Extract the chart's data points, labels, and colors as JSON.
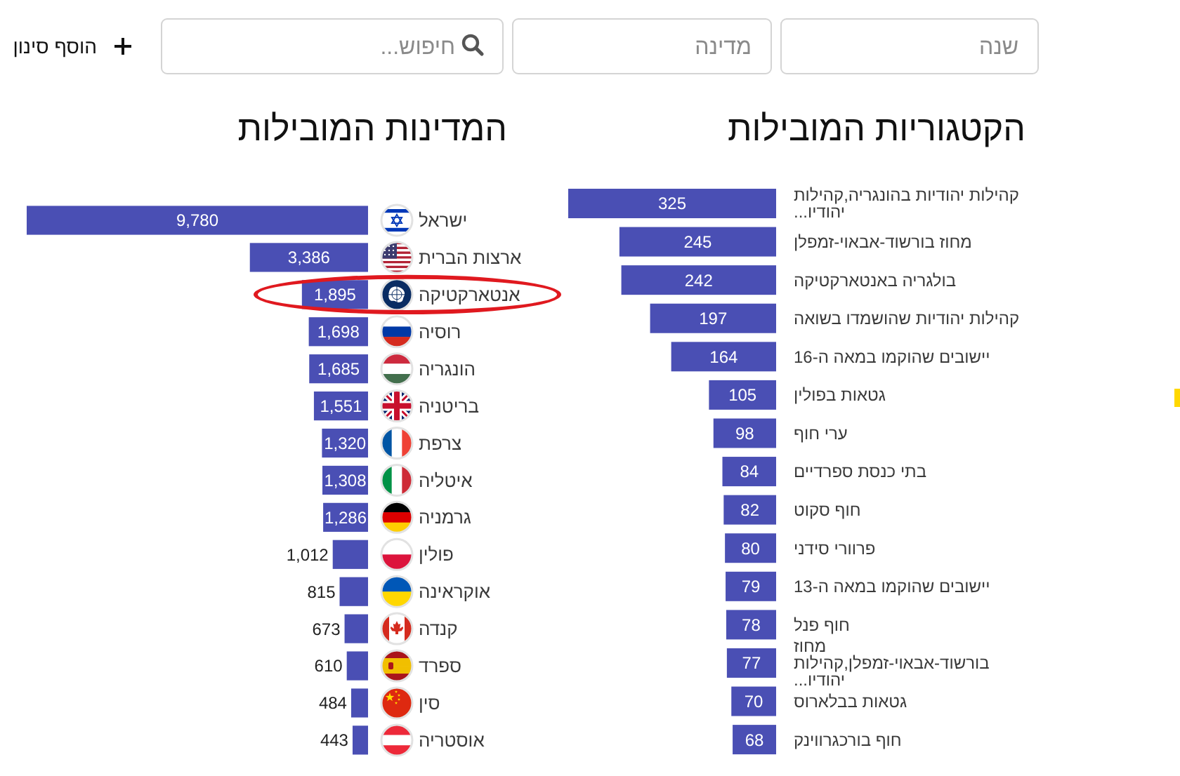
{
  "chart_data": [
    {
      "type": "other",
      "annotations": [
        "שנה",
        "מדינה",
        "חיפוש...",
        "הוסף סינון"
      ]
    },
    {
      "type": "bar",
      "orientation": "horizontal",
      "title": "הקטגוריות המובילות",
      "categories": [
        "קהילות יהודיות בהונגריה,קהילות יהודיו...",
        "מחוז בורשוד-אבאוי-זמפלן",
        "בולגריה באנטארקטיקה",
        "קהילות יהודיות שהושמדו בשואה",
        "יישובים שהוקמו במאה ה-16",
        "גטאות בפולין",
        "ערי חוף",
        "בתי כנסת ספרדיים",
        "חוף סקוט",
        "פרוורי סידני",
        "יישובים שהוקמו במאה ה-13",
        "חוף פנל",
        "מחוז בורשוד-אבאוי-זמפלן,קהילות יהודיו...",
        "גטאות בבלארוס",
        "חוף בורכגרווינק"
      ],
      "values": [
        325,
        245,
        242,
        197,
        164,
        105,
        98,
        84,
        82,
        80,
        79,
        78,
        77,
        70,
        68
      ],
      "color": "#4a4fb4",
      "data_labels": true
    },
    {
      "type": "bar",
      "orientation": "horizontal",
      "title": "המדינות המובילות",
      "categories": [
        "ישראל",
        "ארצות הברית",
        "אנטארקטיקה",
        "רוסיה",
        "הונגריה",
        "בריטניה",
        "צרפת",
        "איטליה",
        "גרמניה",
        "פולין",
        "אוקראינה",
        "קנדה",
        "ספרד",
        "סין",
        "אוסטריה"
      ],
      "values": [
        9780,
        3386,
        1895,
        1698,
        1685,
        1551,
        1320,
        1308,
        1286,
        1012,
        815,
        673,
        610,
        484,
        443
      ],
      "value_labels": [
        "9,780",
        "3,386",
        "1,895",
        "1,698",
        "1,685",
        "1,551",
        "1,320",
        "1,308",
        "1,286",
        "1,012",
        "815",
        "673",
        "610",
        "484",
        "443"
      ],
      "color": "#4a4fb4"
    }
  ]
}
